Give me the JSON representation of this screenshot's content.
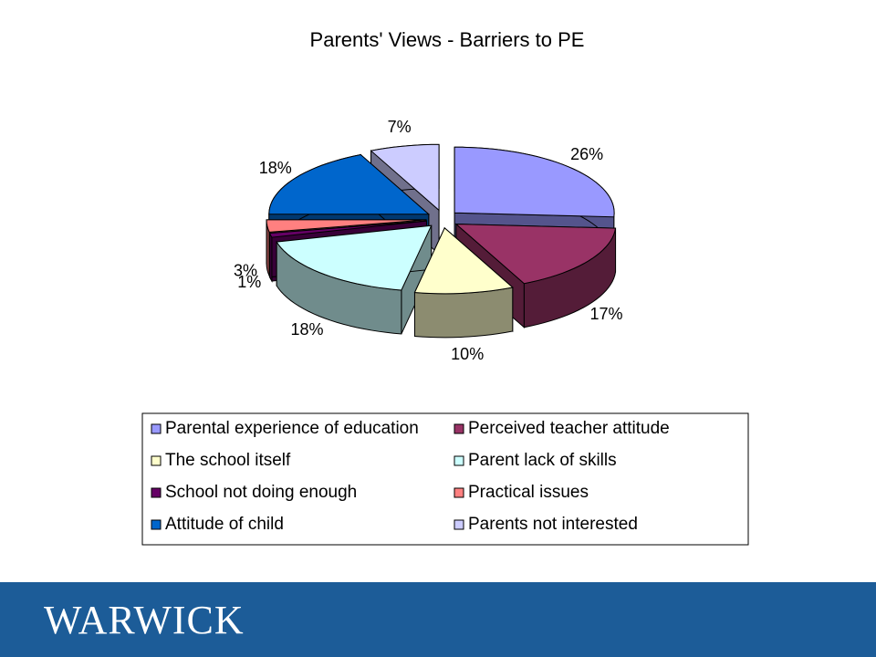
{
  "chart_data": {
    "type": "pie3d",
    "title": "Parents' Views - Barriers to PE",
    "categories": [
      "Parental experience of education",
      "Perceived teacher attitude",
      "The school itself",
      "Parent lack of skills",
      "School not doing enough",
      "Practical issues",
      "Attitude of child",
      "Parents not interested"
    ],
    "values": [
      26,
      17,
      10,
      18,
      1,
      3,
      18,
      7
    ],
    "value_labels": [
      "26%",
      "17%",
      "10%",
      "18%",
      "1%",
      "3%",
      "18%",
      "7%"
    ],
    "colors": [
      "#9999ff",
      "#993366",
      "#ffffcc",
      "#ccffff",
      "#660066",
      "#ff8080",
      "#0066cc",
      "#ccccff"
    ],
    "legend": "bottom"
  },
  "footer": {
    "logo": "WARWICK"
  }
}
